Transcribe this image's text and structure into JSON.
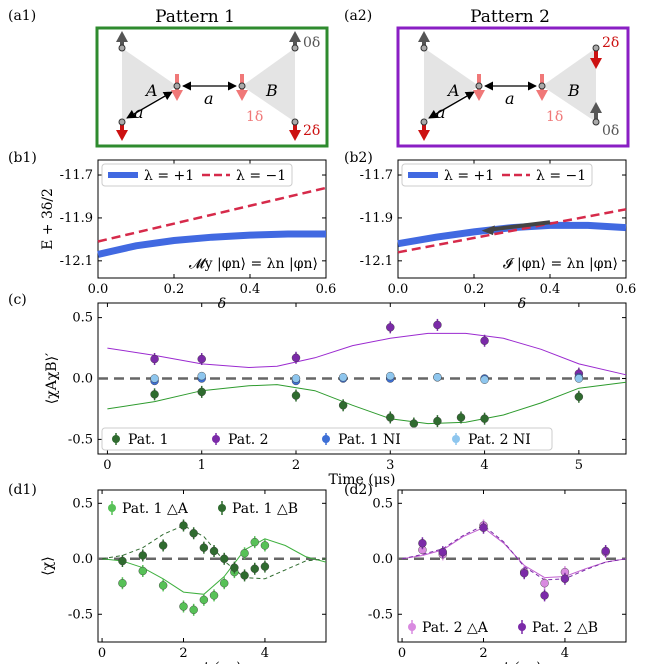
{
  "panel_labels": [
    "(a1)",
    "(a2)",
    "(b1)",
    "(b2)",
    "(c)",
    "(d1)",
    "(d2)"
  ],
  "patterns": {
    "p1": {
      "title": "Pattern 1",
      "color": "#2e8b2e",
      "label_a": "A",
      "label_b": "B",
      "bond": "a",
      "ann_1": "0δ",
      "ann_2": "1δ",
      "ann_3": "2δ"
    },
    "p2": {
      "title": "Pattern 2",
      "color": "#8a1fc4",
      "label_a": "A",
      "label_b": "B",
      "bond": "a",
      "ann_1": "2δ",
      "ann_2": "1δ",
      "ann_3": "0δ"
    }
  },
  "colors": {
    "lambda_plus": "#4169e1",
    "lambda_minus": "#d62a4a",
    "dark_green": "#2f6b2f",
    "light_green": "#57c157",
    "purple": "#7b2aa8",
    "light_purple": "#d98ae0",
    "blue": "#3d6fd6",
    "light_blue": "#8ec6ee",
    "spin_dark": "#555555",
    "spin_red": "#cc1111",
    "spin_pink": "#f07878"
  },
  "chart_data": [
    {
      "id": "b1",
      "type": "line",
      "xlabel": "δ",
      "ylabel": "E + 3δ/2",
      "xlim": [
        0,
        0.6
      ],
      "ylim": [
        -12.18,
        -11.63
      ],
      "xticks": [
        "0.0",
        "0.2",
        "0.4",
        "0.6"
      ],
      "yticks": [
        "-11.7",
        "-11.9",
        "-12.1"
      ],
      "legend": [
        "λ = +1",
        "λ = −1"
      ],
      "annotation": "𝓜y |φn⟩ = λn |φn⟩",
      "series": [
        {
          "name": "λ = +1",
          "x": [
            0,
            0.1,
            0.2,
            0.3,
            0.4,
            0.5,
            0.6
          ],
          "y": [
            -12.07,
            -12.03,
            -12.005,
            -11.99,
            -11.98,
            -11.975,
            -11.975
          ]
        },
        {
          "name": "λ = −1",
          "x": [
            0,
            0.6
          ],
          "y": [
            -12.01,
            -11.76
          ]
        }
      ]
    },
    {
      "id": "b2",
      "type": "line",
      "xlabel": "δ",
      "ylabel": "",
      "xlim": [
        0,
        0.6
      ],
      "ylim": [
        -12.18,
        -11.63
      ],
      "xticks": [
        "0.0",
        "0.2",
        "0.4",
        "0.6"
      ],
      "yticks": [
        "-11.7",
        "-11.9",
        "-12.1"
      ],
      "legend": [
        "λ = +1",
        "λ = −1"
      ],
      "annotation": "𝓘 |φn⟩ = λn |φn⟩",
      "series": [
        {
          "name": "λ = +1",
          "x": [
            0,
            0.1,
            0.2,
            0.3,
            0.4,
            0.5,
            0.6
          ],
          "y": [
            -12.02,
            -11.99,
            -11.965,
            -11.945,
            -11.935,
            -11.935,
            -11.945
          ]
        },
        {
          "name": "λ = −1",
          "x": [
            0,
            0.6
          ],
          "y": [
            -12.06,
            -11.86
          ]
        }
      ]
    },
    {
      "id": "c",
      "type": "scatter",
      "xlabel": "Time (μs)",
      "ylabel": "⟨χAχB⟩′",
      "xlim": [
        -0.1,
        5.5
      ],
      "ylim": [
        -0.62,
        0.62
      ],
      "xticks": [
        "0",
        "1",
        "2",
        "3",
        "4",
        "5"
      ],
      "yticks": [
        "0.5",
        "0.0",
        "-0.5"
      ],
      "legend": [
        "Pat. 1",
        "Pat. 2",
        "Pat. 1 NI",
        "Pat. 2 NI"
      ],
      "series": [
        {
          "name": "Pat. 1",
          "x": [
            0.5,
            1.0,
            2.0,
            2.5,
            3.0,
            3.25,
            3.5,
            3.75,
            4.0,
            5.0
          ],
          "y": [
            -0.13,
            -0.11,
            -0.14,
            -0.22,
            -0.32,
            -0.37,
            -0.35,
            -0.32,
            -0.33,
            -0.15
          ]
        },
        {
          "name": "Pat. 2",
          "x": [
            0.5,
            1.0,
            2.0,
            3.0,
            3.5,
            4.0,
            5.0
          ],
          "y": [
            0.16,
            0.16,
            0.17,
            0.42,
            0.44,
            0.31,
            0.04
          ]
        },
        {
          "name": "Pat. 1 NI",
          "x": [
            0.5,
            1.0,
            2.0,
            2.5,
            3.0,
            3.5,
            4.0,
            5.0
          ],
          "y": [
            -0.02,
            0.0,
            -0.02,
            0.0,
            0.0,
            0.01,
            0.0,
            0.01
          ]
        },
        {
          "name": "Pat. 2 NI",
          "x": [
            0.5,
            1.0,
            2.0,
            2.5,
            3.0,
            3.5,
            4.0,
            5.0
          ],
          "y": [
            0.0,
            0.02,
            0.0,
            0.01,
            0.02,
            0.01,
            -0.01,
            0.0
          ]
        },
        {
          "name": "fit Pat. 1",
          "x": [
            0,
            0.5,
            1.0,
            1.5,
            1.8,
            2.2,
            2.6,
            3.0,
            3.4,
            3.8,
            4.2,
            4.6,
            5.0,
            5.5
          ],
          "y": [
            -0.25,
            -0.19,
            -0.1,
            -0.06,
            -0.05,
            -0.1,
            -0.22,
            -0.33,
            -0.37,
            -0.36,
            -0.3,
            -0.2,
            -0.08,
            -0.03
          ]
        },
        {
          "name": "fit Pat. 2",
          "x": [
            0,
            0.5,
            1.0,
            1.5,
            1.8,
            2.2,
            2.6,
            3.0,
            3.4,
            3.8,
            4.2,
            4.6,
            5.0,
            5.5
          ],
          "y": [
            0.25,
            0.19,
            0.12,
            0.09,
            0.1,
            0.17,
            0.27,
            0.33,
            0.37,
            0.37,
            0.33,
            0.24,
            0.12,
            0.03
          ]
        }
      ]
    },
    {
      "id": "d1",
      "type": "scatter",
      "xlabel": "t (μs)",
      "ylabel": "⟨χ⟩",
      "xlim": [
        -0.1,
        5.5
      ],
      "ylim": [
        -0.75,
        0.62
      ],
      "xticks": [
        "0",
        "2",
        "4"
      ],
      "yticks": [
        "0.5",
        "0.0",
        "-0.5"
      ],
      "legend": [
        "Pat. 1 △A",
        "Pat. 1 △B"
      ],
      "series": [
        {
          "name": "Pat. 1 △A",
          "x": [
            0.5,
            1.0,
            1.5,
            2.0,
            2.25,
            2.5,
            2.75,
            3.0,
            3.25,
            3.5,
            3.75,
            4.0
          ],
          "y": [
            -0.22,
            -0.11,
            -0.24,
            -0.43,
            -0.46,
            -0.37,
            -0.33,
            -0.22,
            -0.12,
            0.05,
            0.15,
            0.12
          ]
        },
        {
          "name": "Pat. 1 △B",
          "x": [
            0.5,
            1.0,
            1.5,
            2.0,
            2.25,
            2.5,
            2.75,
            3.0,
            3.25,
            3.5,
            3.75,
            4.0
          ],
          "y": [
            -0.02,
            0.03,
            0.12,
            0.3,
            0.23,
            0.1,
            0.07,
            0.0,
            -0.08,
            -0.15,
            -0.09,
            -0.07
          ]
        },
        {
          "name": "fit △A",
          "x": [
            0,
            0.5,
            1.0,
            1.5,
            2.0,
            2.5,
            3.0,
            3.5,
            4.0,
            4.5,
            5.0,
            5.5
          ],
          "y": [
            0.0,
            -0.02,
            -0.08,
            -0.18,
            -0.3,
            -0.32,
            -0.16,
            0.08,
            0.18,
            0.12,
            0.02,
            -0.03
          ]
        },
        {
          "name": "fit △B",
          "x": [
            0,
            0.5,
            1.0,
            1.5,
            2.0,
            2.5,
            3.0,
            3.5,
            4.0,
            4.5,
            5.0,
            5.5
          ],
          "y": [
            0.0,
            0.03,
            0.1,
            0.22,
            0.3,
            0.2,
            -0.02,
            -0.17,
            -0.18,
            -0.1,
            -0.02,
            0.0
          ]
        }
      ]
    },
    {
      "id": "d2",
      "type": "scatter",
      "xlabel": "t (μs)",
      "ylabel": "",
      "xlim": [
        -0.1,
        5.5
      ],
      "ylim": [
        -0.75,
        0.62
      ],
      "xticks": [
        "0",
        "2",
        "4"
      ],
      "yticks": [
        "0.5",
        "0.0",
        "-0.5"
      ],
      "legend": [
        "Pat. 2 △A",
        "Pat. 2 △B"
      ],
      "series": [
        {
          "name": "Pat. 2 △A",
          "x": [
            0.5,
            1.0,
            2.0,
            3.0,
            3.5,
            4.0,
            5.0
          ],
          "y": [
            0.08,
            0.04,
            0.3,
            -0.12,
            -0.22,
            -0.12,
            0.06
          ]
        },
        {
          "name": "Pat. 2 △B",
          "x": [
            0.5,
            1.0,
            2.0,
            3.0,
            3.5,
            4.0,
            5.0
          ],
          "y": [
            0.14,
            0.06,
            0.28,
            -0.13,
            -0.33,
            -0.18,
            0.07
          ]
        },
        {
          "name": "fit △A",
          "x": [
            0,
            0.5,
            1.0,
            1.5,
            2.0,
            2.5,
            3.0,
            3.5,
            4.0,
            4.5,
            5.0,
            5.5
          ],
          "y": [
            0.0,
            0.03,
            0.08,
            0.2,
            0.28,
            0.14,
            -0.06,
            -0.17,
            -0.16,
            -0.09,
            -0.03,
            0.0
          ]
        },
        {
          "name": "fit △B",
          "x": [
            0,
            0.5,
            1.0,
            1.5,
            2.0,
            2.5,
            3.0,
            3.5,
            4.0,
            4.5,
            5.0,
            5.5
          ],
          "y": [
            0.0,
            0.04,
            0.09,
            0.21,
            0.3,
            0.15,
            -0.07,
            -0.19,
            -0.18,
            -0.1,
            -0.03,
            0.0
          ]
        }
      ]
    }
  ]
}
